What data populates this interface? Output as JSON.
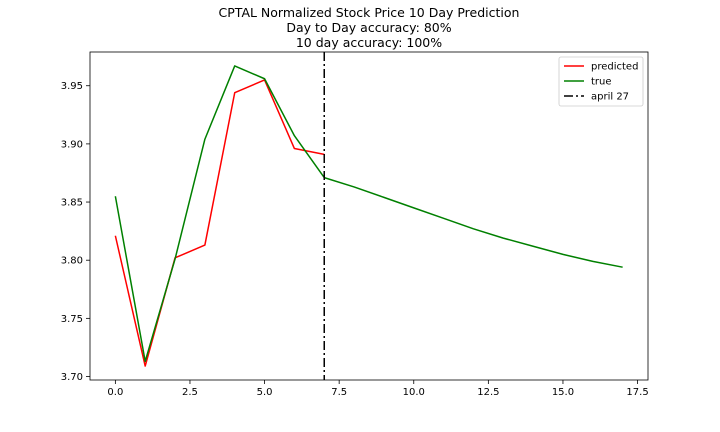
{
  "chart_data": {
    "type": "line",
    "title_lines": [
      "CPTAL Normalized Stock Price 10 Day Prediction",
      "Day to Day accuracy: 80%",
      "10 day accuracy: 100%"
    ],
    "xlabel": "",
    "ylabel": "",
    "xlim": [
      -0.85,
      17.85
    ],
    "ylim": [
      3.697,
      3.979
    ],
    "xticks": [
      "0.0",
      "2.5",
      "5.0",
      "7.5",
      "10.0",
      "12.5",
      "15.0",
      "17.5"
    ],
    "xtick_values": [
      0,
      2.5,
      5,
      7.5,
      10,
      12.5,
      15,
      17.5
    ],
    "yticks": [
      "3.70",
      "3.75",
      "3.80",
      "3.85",
      "3.90",
      "3.95"
    ],
    "ytick_values": [
      3.7,
      3.75,
      3.8,
      3.85,
      3.9,
      3.95
    ],
    "grid": false,
    "legend_position": "top-right",
    "series": [
      {
        "name": "predicted",
        "color": "#ff0000",
        "x": [
          0,
          1,
          2,
          3,
          4,
          5,
          6,
          7
        ],
        "y": [
          3.821,
          3.709,
          3.802,
          3.813,
          3.944,
          3.955,
          3.896,
          3.891
        ]
      },
      {
        "name": "true",
        "color": "#008000",
        "x": [
          0,
          1,
          2,
          3,
          4,
          5,
          6,
          7,
          8,
          9,
          10,
          11,
          12,
          13,
          14,
          15,
          16,
          17
        ],
        "y": [
          3.855,
          3.713,
          3.801,
          3.904,
          3.967,
          3.956,
          3.907,
          3.871,
          3.863,
          3.854,
          3.845,
          3.836,
          3.827,
          3.819,
          3.812,
          3.805,
          3.799,
          3.794
        ]
      }
    ],
    "vline": {
      "name": "april 27",
      "x": 7,
      "color": "#000000",
      "style": "dashdot"
    }
  }
}
